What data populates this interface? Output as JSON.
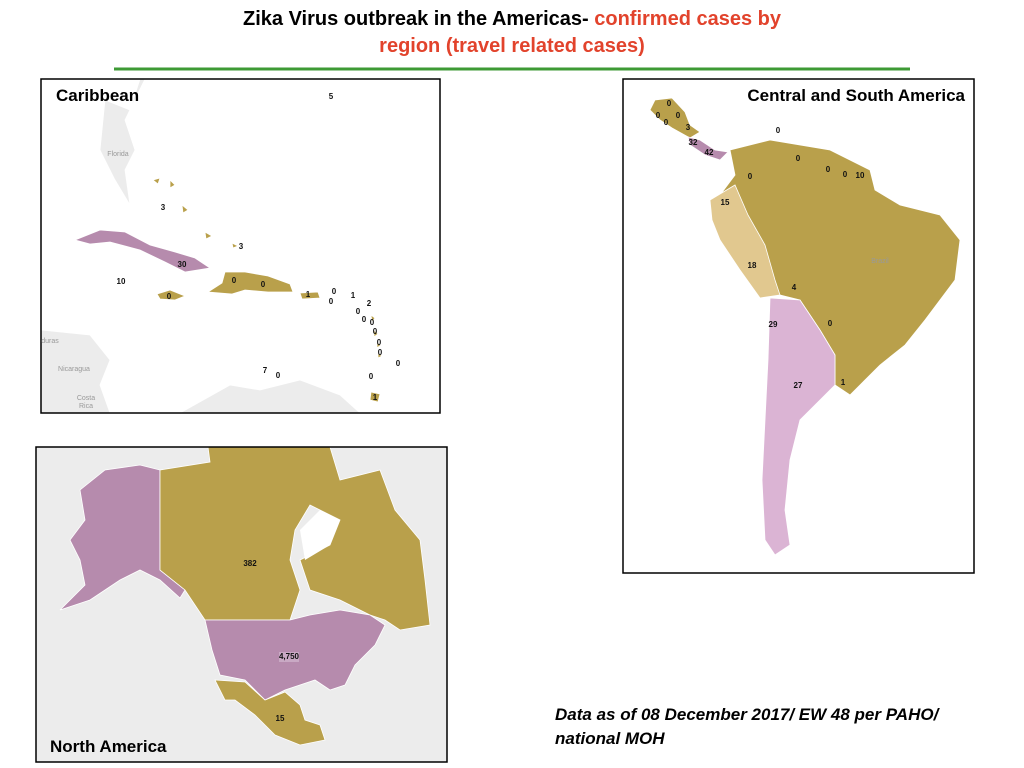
{
  "title": {
    "lead": "Zika Virus outbreak in the Americas-",
    "highlight": [
      "confirmed cases by",
      "region (travel related cases)"
    ]
  },
  "panels": {
    "caribbean": {
      "label": "Caribbean",
      "counts": [
        5,
        3,
        3,
        30,
        10,
        0,
        0,
        0,
        1,
        0,
        0,
        1,
        2,
        0,
        0,
        0,
        0,
        0,
        0,
        0,
        7,
        0,
        0,
        1
      ],
      "place_names": [
        "Florida",
        "duras",
        "Nicaragua",
        "Costa",
        "Rica"
      ]
    },
    "central_south_america": {
      "label": "Central and South America",
      "counts": [
        0,
        0,
        0,
        0,
        3,
        32,
        42,
        0,
        0,
        0,
        0,
        10,
        0,
        15,
        18,
        4,
        29,
        0,
        27,
        1
      ],
      "place_names": [
        "Brazil"
      ]
    },
    "north_america": {
      "label": "North America",
      "counts": [
        382,
        {
          "value": 4750,
          "label": "4,750"
        },
        15
      ]
    }
  },
  "note": [
    "Data as of 08 December 2017/ EW 48 per PAHO/",
    "national MOH"
  ]
}
